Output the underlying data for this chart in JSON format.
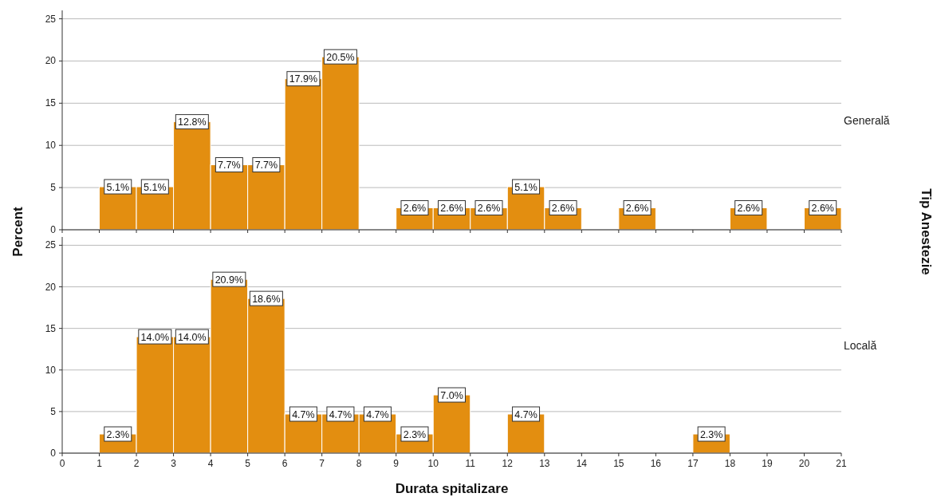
{
  "chart_data": [
    {
      "type": "histogram",
      "ylabel": "Percent",
      "y2label": "Tip Anestezie",
      "subtitle": "Generală",
      "color": "#e38e10",
      "bins": [
        1,
        2,
        3,
        4,
        5,
        6,
        7,
        8,
        9,
        10,
        11,
        12,
        13,
        14,
        15,
        16,
        17,
        18,
        19,
        20,
        21
      ],
      "values": [
        5.1,
        5.1,
        12.8,
        7.7,
        7.7,
        17.9,
        20.5,
        0,
        2.6,
        2.6,
        2.6,
        5.1,
        2.6,
        0,
        2.6,
        0,
        0,
        2.6,
        0,
        2.6
      ],
      "value_labels": [
        "5.1%",
        "5.1%",
        "12.8%",
        "7.7%",
        "7.7%",
        "17.9%",
        "20.5%",
        null,
        "2.6%",
        "2.6%",
        "2.6%",
        "5.1%",
        "2.6%",
        null,
        "2.6%",
        null,
        null,
        "2.6%",
        null,
        "2.6%"
      ],
      "xlim": [
        0,
        21
      ],
      "xticks": [
        0,
        1,
        2,
        3,
        4,
        5,
        6,
        7,
        8,
        9,
        10,
        11,
        12,
        13,
        14,
        15,
        16,
        17,
        18,
        19,
        20,
        21
      ],
      "ylim": [
        0,
        26
      ],
      "yticks": [
        0,
        5,
        10,
        15,
        20,
        25
      ],
      "grid": "y",
      "tick_labels": "y"
    },
    {
      "type": "histogram",
      "xlabel": "Durata spitalizare",
      "subtitle": "Locală",
      "color": "#e38e10",
      "bins": [
        1,
        2,
        3,
        4,
        5,
        6,
        7,
        8,
        9,
        10,
        11,
        12,
        13,
        14,
        15,
        16,
        17,
        18,
        19,
        20,
        21
      ],
      "values": [
        2.3,
        14.0,
        14.0,
        20.9,
        18.6,
        4.7,
        4.7,
        4.7,
        2.3,
        7.0,
        0,
        4.7,
        0,
        0,
        0,
        0,
        2.3,
        0,
        0,
        0
      ],
      "value_labels": [
        "2.3%",
        "14.0%",
        "14.0%",
        "20.9%",
        "18.6%",
        "4.7%",
        "4.7%",
        "4.7%",
        "2.3%",
        "7.0%",
        null,
        "4.7%",
        null,
        null,
        null,
        null,
        "2.3%",
        null,
        null,
        null
      ],
      "xlim": [
        0,
        21
      ],
      "xticks": [
        0,
        1,
        2,
        3,
        4,
        5,
        6,
        7,
        8,
        9,
        10,
        11,
        12,
        13,
        14,
        15,
        16,
        17,
        18,
        19,
        20,
        21
      ],
      "ylim": [
        0,
        26
      ],
      "yticks": [
        0,
        5,
        10,
        15,
        20,
        25
      ],
      "grid": "y"
    }
  ]
}
